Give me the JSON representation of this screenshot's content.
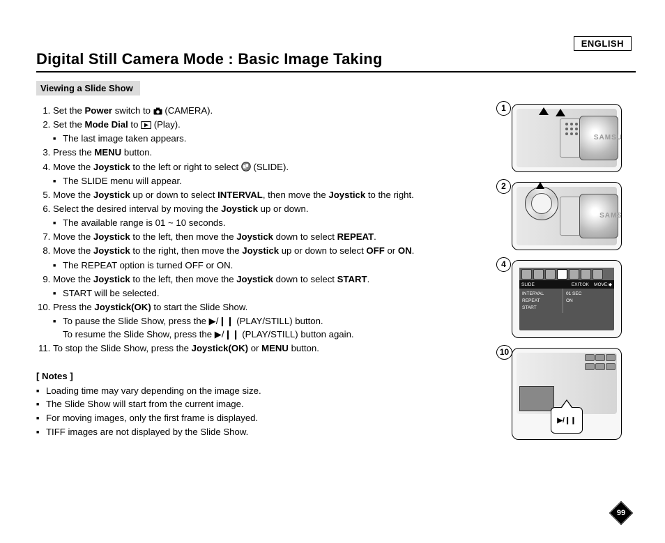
{
  "language_label": "ENGLISH",
  "page_title": "Digital Still Camera Mode : Basic Image Taking",
  "subheading": "Viewing a Slide Show",
  "steps": [
    {
      "pre": "Set the ",
      "b1": "Power",
      "mid": " switch to ",
      "icon": "camera",
      "post": "(CAMERA)."
    },
    {
      "pre": "Set the ",
      "b1": "Mode Dial",
      "mid": " to ",
      "icon": "play",
      "post": "(Play).",
      "subs": [
        "The last image taken appears."
      ]
    },
    {
      "pre": "Press the ",
      "b1": "MENU",
      "post": " button."
    },
    {
      "pre": "Move the ",
      "b1": "Joystick",
      "mid": " to the left or right to select  ",
      "icon": "slide",
      "post": "(SLIDE).",
      "subs": [
        "The SLIDE menu will appear."
      ]
    },
    {
      "pre": "Move the ",
      "b1": "Joystick",
      "mid": " up or down to select ",
      "b2": "INTERVAL",
      "mid2": ", then move the ",
      "b3": "Joystick",
      "post": " to the right."
    },
    {
      "pre": "Select the desired interval by moving the ",
      "b1": "Joystick",
      "post": " up or down.",
      "subs": [
        "The available range is 01 ~ 10 seconds."
      ]
    },
    {
      "pre": "Move the ",
      "b1": "Joystick",
      "mid": " to the left, then move the ",
      "b2": "Joystick",
      "mid2": " down to select ",
      "b3": "REPEAT",
      "post": "."
    },
    {
      "pre": "Move the ",
      "b1": "Joystick",
      "mid": " to the right, then move the ",
      "b2": "Joystick",
      "mid2": " up or down to select ",
      "b3": "OFF",
      "mid3": " or ",
      "b4": "ON",
      "post": ".",
      "subs": [
        "The REPEAT option is turned OFF or ON."
      ]
    },
    {
      "pre": "Move the ",
      "b1": "Joystick",
      "mid": " to the left, then move the ",
      "b2": "Joystick",
      "mid2": " down to select ",
      "b3": "START",
      "post": ".",
      "subs": [
        "START will be selected."
      ]
    },
    {
      "pre": "Press the ",
      "b1": "Joystick(OK)",
      "post": " to start the Slide Show.",
      "subs": [
        "To pause the Slide Show, press the ▶/❙❙ (PLAY/STILL) button.\nTo resume the Slide Show, press the ▶/❙❙ (PLAY/STILL) button again."
      ]
    },
    {
      "pre": "To stop the Slide Show, press the ",
      "b1": "Joystick(OK)",
      "mid": " or ",
      "b2": "MENU",
      "post": " button."
    }
  ],
  "notes_heading": "[ Notes ]",
  "notes": [
    "Loading time may vary depending on the image size.",
    "The Slide Show will start from the current image.",
    "For moving images, only the first frame is displayed.",
    "TIFF images are not displayed by the Slide Show."
  ],
  "figures": {
    "f1": {
      "num": "1",
      "brand": "SAMSU"
    },
    "f2": {
      "num": "2",
      "brand": "SAMS"
    },
    "f4": {
      "num": "4",
      "menu_title": "SLIDE",
      "exit": "EXIT:OK",
      "move": "MOVE:",
      "col1": [
        "INTERVAL",
        "REPEAT",
        "START"
      ],
      "col2": [
        "01 SEC",
        "ON",
        ""
      ]
    },
    "f10": {
      "num": "10",
      "button_glyph": "▶/❙❙"
    }
  },
  "page_number": "99",
  "colors": {
    "sub_bg": "#dcdcdc",
    "lcd_bg": "#555555",
    "lcd_bar": "#111111"
  }
}
